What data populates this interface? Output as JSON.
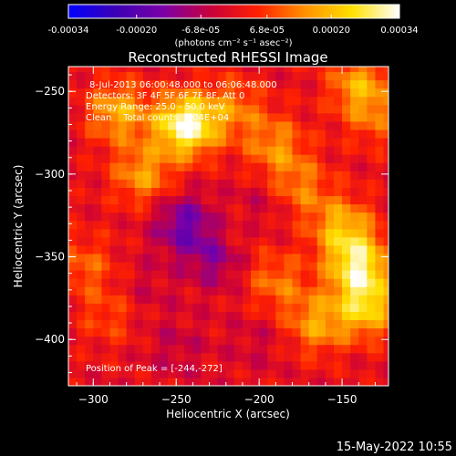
{
  "footer_timestamp": "15-May-2022 10:55",
  "colorbar": {
    "tick_labels": [
      "-0.00034",
      "-0.00020",
      "-6.8e-05",
      "6.8e-05",
      "0.00020",
      "0.00034"
    ],
    "tick_values": [
      -0.00034,
      -0.0002,
      -6.8e-05,
      6.8e-05,
      0.0002,
      0.00034
    ],
    "range": [
      -0.00034,
      0.00034
    ],
    "units": "(photons cm⁻² s⁻¹ asec⁻²)",
    "stops": [
      "#0000ff",
      "#3c00b4",
      "#7a00a8",
      "#c8003c",
      "#ff2000",
      "#ff9000",
      "#ffe000",
      "#ffffff"
    ]
  },
  "chart_data": {
    "type": "heatmap",
    "title": "Reconstructed RHESSI Image",
    "xlabel": "Heliocentric X (arcsec)",
    "ylabel": "Heliocentric Y (arcsec)",
    "xlim": [
      -315,
      -122
    ],
    "ylim": [
      -428,
      -235
    ],
    "xticks": [
      -300,
      -250,
      -200,
      -150
    ],
    "yticks": [
      -250,
      -300,
      -350,
      -400
    ],
    "annotations": [
      "8-Jul-2013 06:00:48.000 to 06:06:48.000",
      "Detectors: 3F 4F 5F 6F 7F 8F, Att 0",
      "Energy Range: 25.0 - 50.0 keV",
      "Clean    Total counts: 1.04E+04",
      "Position of Peak = [-244,-272]"
    ],
    "peak": {
      "x": -244,
      "y": -272
    },
    "regions": [
      {
        "x": -244,
        "y": -270,
        "value": 0.00034
      },
      {
        "x": -285,
        "y": -262,
        "value": 0.00018
      },
      {
        "x": -270,
        "y": -300,
        "value": 0.00016
      },
      {
        "x": -215,
        "y": -260,
        "value": 0.00012
      },
      {
        "x": -190,
        "y": -283,
        "value": 0.00014
      },
      {
        "x": -140,
        "y": -245,
        "value": 0.00016
      },
      {
        "x": -130,
        "y": -265,
        "value": 0.0001
      },
      {
        "x": -175,
        "y": -308,
        "value": 0.00012
      },
      {
        "x": -150,
        "y": -332,
        "value": 0.00018
      },
      {
        "x": -140,
        "y": -355,
        "value": 0.00026
      },
      {
        "x": -135,
        "y": -380,
        "value": 0.00022
      },
      {
        "x": -165,
        "y": -390,
        "value": 0.00016
      },
      {
        "x": -190,
        "y": -365,
        "value": 0.00012
      },
      {
        "x": -215,
        "y": -335,
        "value": 6e-05
      },
      {
        "x": -305,
        "y": -355,
        "value": 0.0001
      },
      {
        "x": -290,
        "y": -385,
        "value": 8e-05
      },
      {
        "x": -245,
        "y": -330,
        "value": -0.00016
      },
      {
        "x": -225,
        "y": -350,
        "value": -0.00012
      },
      {
        "x": -200,
        "y": -320,
        "value": -6e-05
      },
      {
        "x": -270,
        "y": -370,
        "value": -4e-05
      },
      {
        "x": -250,
        "y": -405,
        "value": -5e-05
      },
      {
        "x": -200,
        "y": -400,
        "value": -4e-05
      }
    ]
  }
}
